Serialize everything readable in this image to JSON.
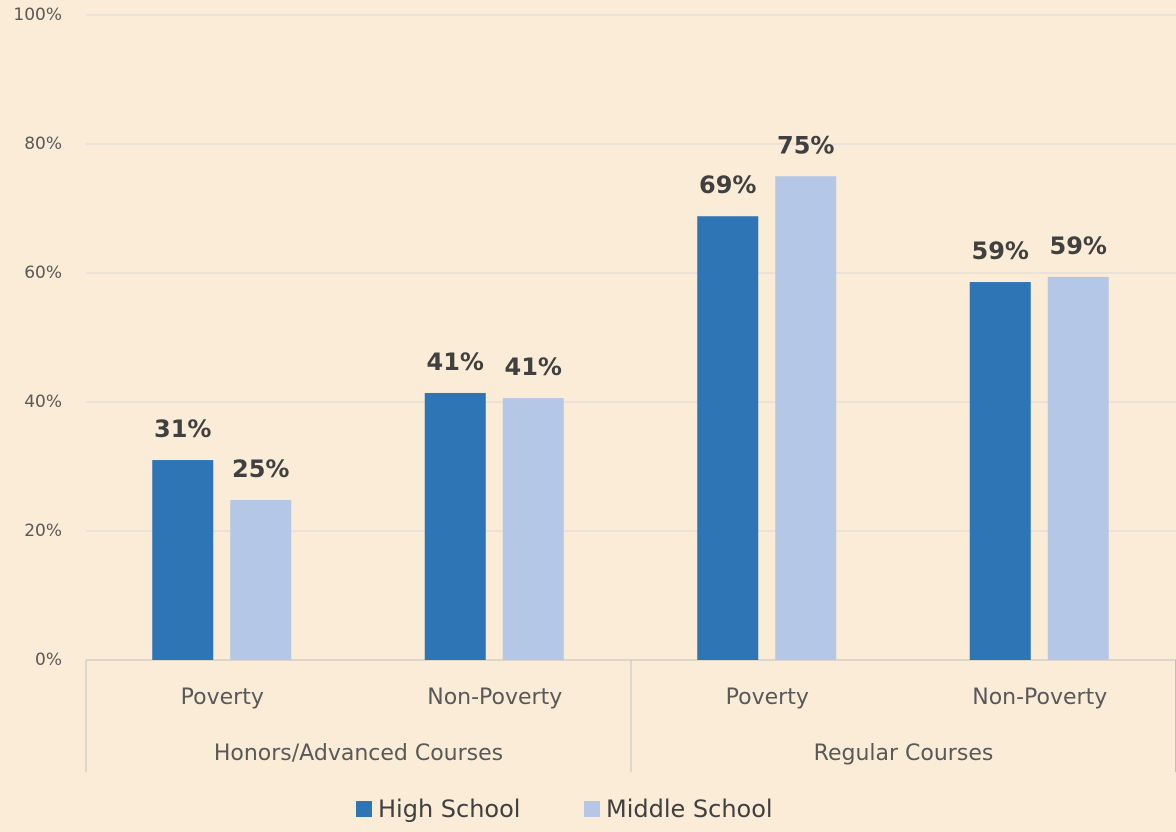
{
  "chart_data": {
    "type": "bar",
    "groups": [
      {
        "label": "Honors/Advanced Courses",
        "categories": [
          "Poverty",
          "Non-Poverty"
        ]
      },
      {
        "label": "Regular Courses",
        "categories": [
          "Poverty",
          "Non-Poverty"
        ]
      }
    ],
    "series": [
      {
        "name": "High School",
        "color": "#2e75b6",
        "values": [
          31.0,
          41.4,
          68.8,
          58.6
        ],
        "value_labels": [
          "31%",
          "41%",
          "69%",
          "59%"
        ]
      },
      {
        "name": "Middle School",
        "color": "#b4c7e7",
        "values": [
          24.8,
          40.6,
          75.0,
          59.4
        ],
        "value_labels": [
          "25%",
          "41%",
          "75%",
          "59%"
        ]
      }
    ],
    "ylim": [
      0,
      100
    ],
    "yticks": [
      {
        "value": 0,
        "label": "0%"
      },
      {
        "value": 20,
        "label": "20%"
      },
      {
        "value": 40,
        "label": "40%"
      },
      {
        "value": 60,
        "label": "60%"
      },
      {
        "value": 80,
        "label": "80%"
      },
      {
        "value": 100,
        "label": "100%"
      }
    ],
    "grid": true,
    "legend": "bottom"
  }
}
